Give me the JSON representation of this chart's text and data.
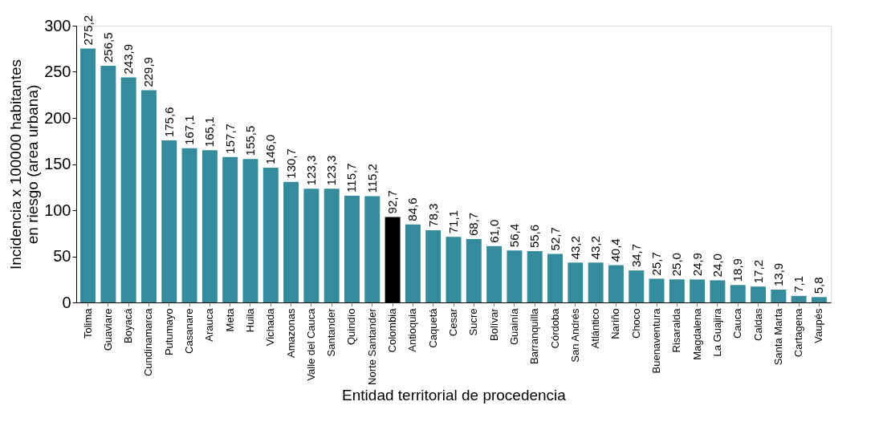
{
  "chart_data": {
    "type": "bar",
    "xlabel": "Entidad territorial de procedencia",
    "ylabel": "Incidencia x 100000 habitantes en riesgo (area urbana)",
    "categories": [
      "Tolima",
      "Guaviare",
      "Boyacá",
      "Cundinamarca",
      "Putumayo",
      "Casanare",
      "Arauca",
      "Meta",
      "Huila",
      "Vichada",
      "Amazonas",
      "Valle del Cauca",
      "Santander",
      "Quindío",
      "Norte Santander",
      "Colombia",
      "Antioquia",
      "Caquetá",
      "Cesar",
      "Sucre",
      "Bolívar",
      "Guainía",
      "Barranquilla",
      "Córdoba",
      "San Andrés",
      "Atlántico",
      "Nariño",
      "Choco",
      "Buenaventura",
      "Risaralda",
      "Magdalena",
      "La Guajira",
      "Cauca",
      "Caldas",
      "Santa Marta",
      "Cartagena",
      "Vaupés"
    ],
    "values": [
      275.2,
      256.5,
      243.9,
      229.9,
      175.6,
      167.1,
      165.1,
      157.7,
      155.5,
      146.0,
      130.7,
      123.3,
      123.3,
      115.7,
      115.2,
      92.7,
      84.6,
      78.3,
      71.1,
      68.7,
      61.0,
      56.4,
      55.6,
      52.7,
      43.2,
      43.2,
      40.4,
      34.7,
      25.7,
      25.0,
      24.9,
      24.0,
      18.9,
      17.2,
      13.9,
      7.1,
      5.8
    ],
    "value_labels": [
      "275,2",
      "256,5",
      "243,9",
      "229,9",
      "175,6",
      "167,1",
      "165,1",
      "157,7",
      "155,5",
      "146,0",
      "130,7",
      "123,3",
      "123,3",
      "115,7",
      "115,2",
      "92,7",
      "84,6",
      "78,3",
      "71,1",
      "68,7",
      "61,0",
      "56,4",
      "55,6",
      "52,7",
      "43,2",
      "43,2",
      "40,4",
      "34,7",
      "25,7",
      "25,0",
      "24,9",
      "24,0",
      "18,9",
      "17,2",
      "13,9",
      "7,1",
      "5,8"
    ],
    "colors": [
      "#338b9c",
      "#338b9c",
      "#338b9c",
      "#338b9c",
      "#338b9c",
      "#338b9c",
      "#338b9c",
      "#338b9c",
      "#338b9c",
      "#338b9c",
      "#338b9c",
      "#338b9c",
      "#338b9c",
      "#338b9c",
      "#338b9c",
      "#000000",
      "#338b9c",
      "#338b9c",
      "#338b9c",
      "#338b9c",
      "#338b9c",
      "#338b9c",
      "#338b9c",
      "#338b9c",
      "#338b9c",
      "#338b9c",
      "#338b9c",
      "#338b9c",
      "#338b9c",
      "#338b9c",
      "#338b9c",
      "#338b9c",
      "#338b9c",
      "#338b9c",
      "#338b9c",
      "#338b9c",
      "#338b9c"
    ],
    "ylim": [
      0,
      300
    ],
    "yticks": [
      0,
      50,
      100,
      150,
      200,
      250,
      300
    ],
    "grid": false
  }
}
